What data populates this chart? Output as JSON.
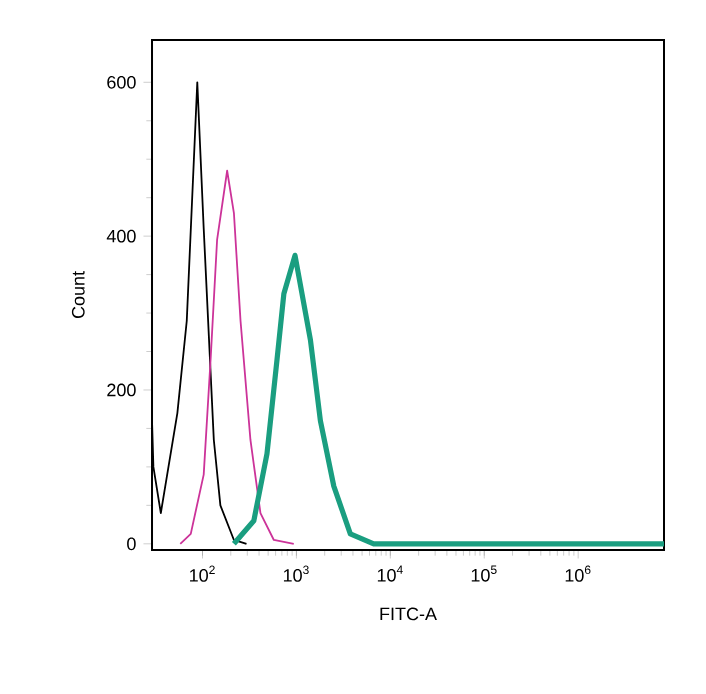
{
  "chart_data": {
    "type": "line",
    "xlabel": "FITC-A",
    "ylabel": "Count",
    "log": "x",
    "xlim": [
      29,
      8200000
    ],
    "ylim": [
      -8,
      655
    ],
    "xticks": [
      {
        "value": 100,
        "label": "10$^{2}$"
      },
      {
        "value": 1000,
        "label": "10$^{3}$"
      },
      {
        "value": 10000,
        "label": "10$^{4}$"
      },
      {
        "value": 100000,
        "label": "10$^{5}$"
      },
      {
        "value": 1000000,
        "label": "10$^{6}$"
      }
    ],
    "yticks": [
      0,
      200,
      400,
      600
    ],
    "grid": false,
    "marker": "none",
    "line_style": "solid",
    "series": [
      {
        "color": "#000000",
        "x": [
          29,
          30,
          36,
          54,
          68,
          88,
          103,
          132,
          155,
          216,
          294
        ],
        "values": [
          160,
          100,
          40,
          170,
          290,
          600,
          410,
          135,
          50,
          5,
          0
        ]
      },
      {
        "color": "#cc3399",
        "x": [
          58,
          75,
          103,
          122,
          143,
          183,
          216,
          254,
          324,
          414,
          575,
          937
        ],
        "values": [
          0,
          13,
          90,
          240,
          395,
          485,
          430,
          290,
          135,
          40,
          5,
          0
        ]
      },
      {
        "color": "#1a9e80",
        "x": [
          216,
          352,
          486,
          622,
          735,
          966,
          1410,
          1800,
          2500,
          3750,
          6650,
          8200000
        ],
        "values": [
          0,
          30,
          117,
          240,
          325,
          375,
          265,
          160,
          75,
          13,
          0,
          0
        ]
      }
    ]
  }
}
